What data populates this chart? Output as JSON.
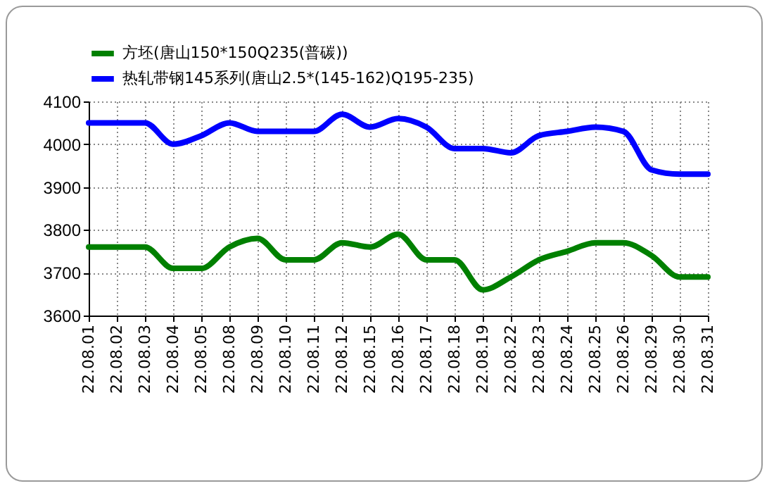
{
  "chart_data": {
    "type": "line",
    "categories": [
      "22.08.01",
      "22.08.02",
      "22.08.03",
      "22.08.04",
      "22.08.05",
      "22.08.08",
      "22.08.09",
      "22.08.10",
      "22.08.11",
      "22.08.12",
      "22.08.15",
      "22.08.16",
      "22.08.17",
      "22.08.18",
      "22.08.19",
      "22.08.22",
      "22.08.23",
      "22.08.24",
      "22.08.25",
      "22.08.26",
      "22.08.29",
      "22.08.30",
      "22.08.31"
    ],
    "series": [
      {
        "name": "方坯(唐山150*150Q235(普碳))",
        "color": "#008000",
        "values": [
          3760,
          3760,
          3760,
          3710,
          3710,
          3760,
          3780,
          3730,
          3730,
          3770,
          3760,
          3790,
          3730,
          3730,
          3660,
          3690,
          3730,
          3750,
          3770,
          3770,
          3740,
          3690,
          3690
        ]
      },
      {
        "name": "热轧带钢145系列(唐山2.5*(145-162)Q195-235)",
        "color": "#0000ff",
        "values": [
          4050,
          4050,
          4050,
          4000,
          4020,
          4050,
          4030,
          4030,
          4030,
          4070,
          4040,
          4060,
          4040,
          3990,
          3990,
          3980,
          4020,
          4030,
          4040,
          4030,
          3940,
          3930,
          3930
        ]
      }
    ],
    "ylim": [
      3600,
      4100
    ],
    "yticks": [
      3600,
      3700,
      3800,
      3900,
      4000,
      4100
    ],
    "grid": true,
    "legend": "top",
    "marker": "none",
    "line_style": "solid"
  }
}
